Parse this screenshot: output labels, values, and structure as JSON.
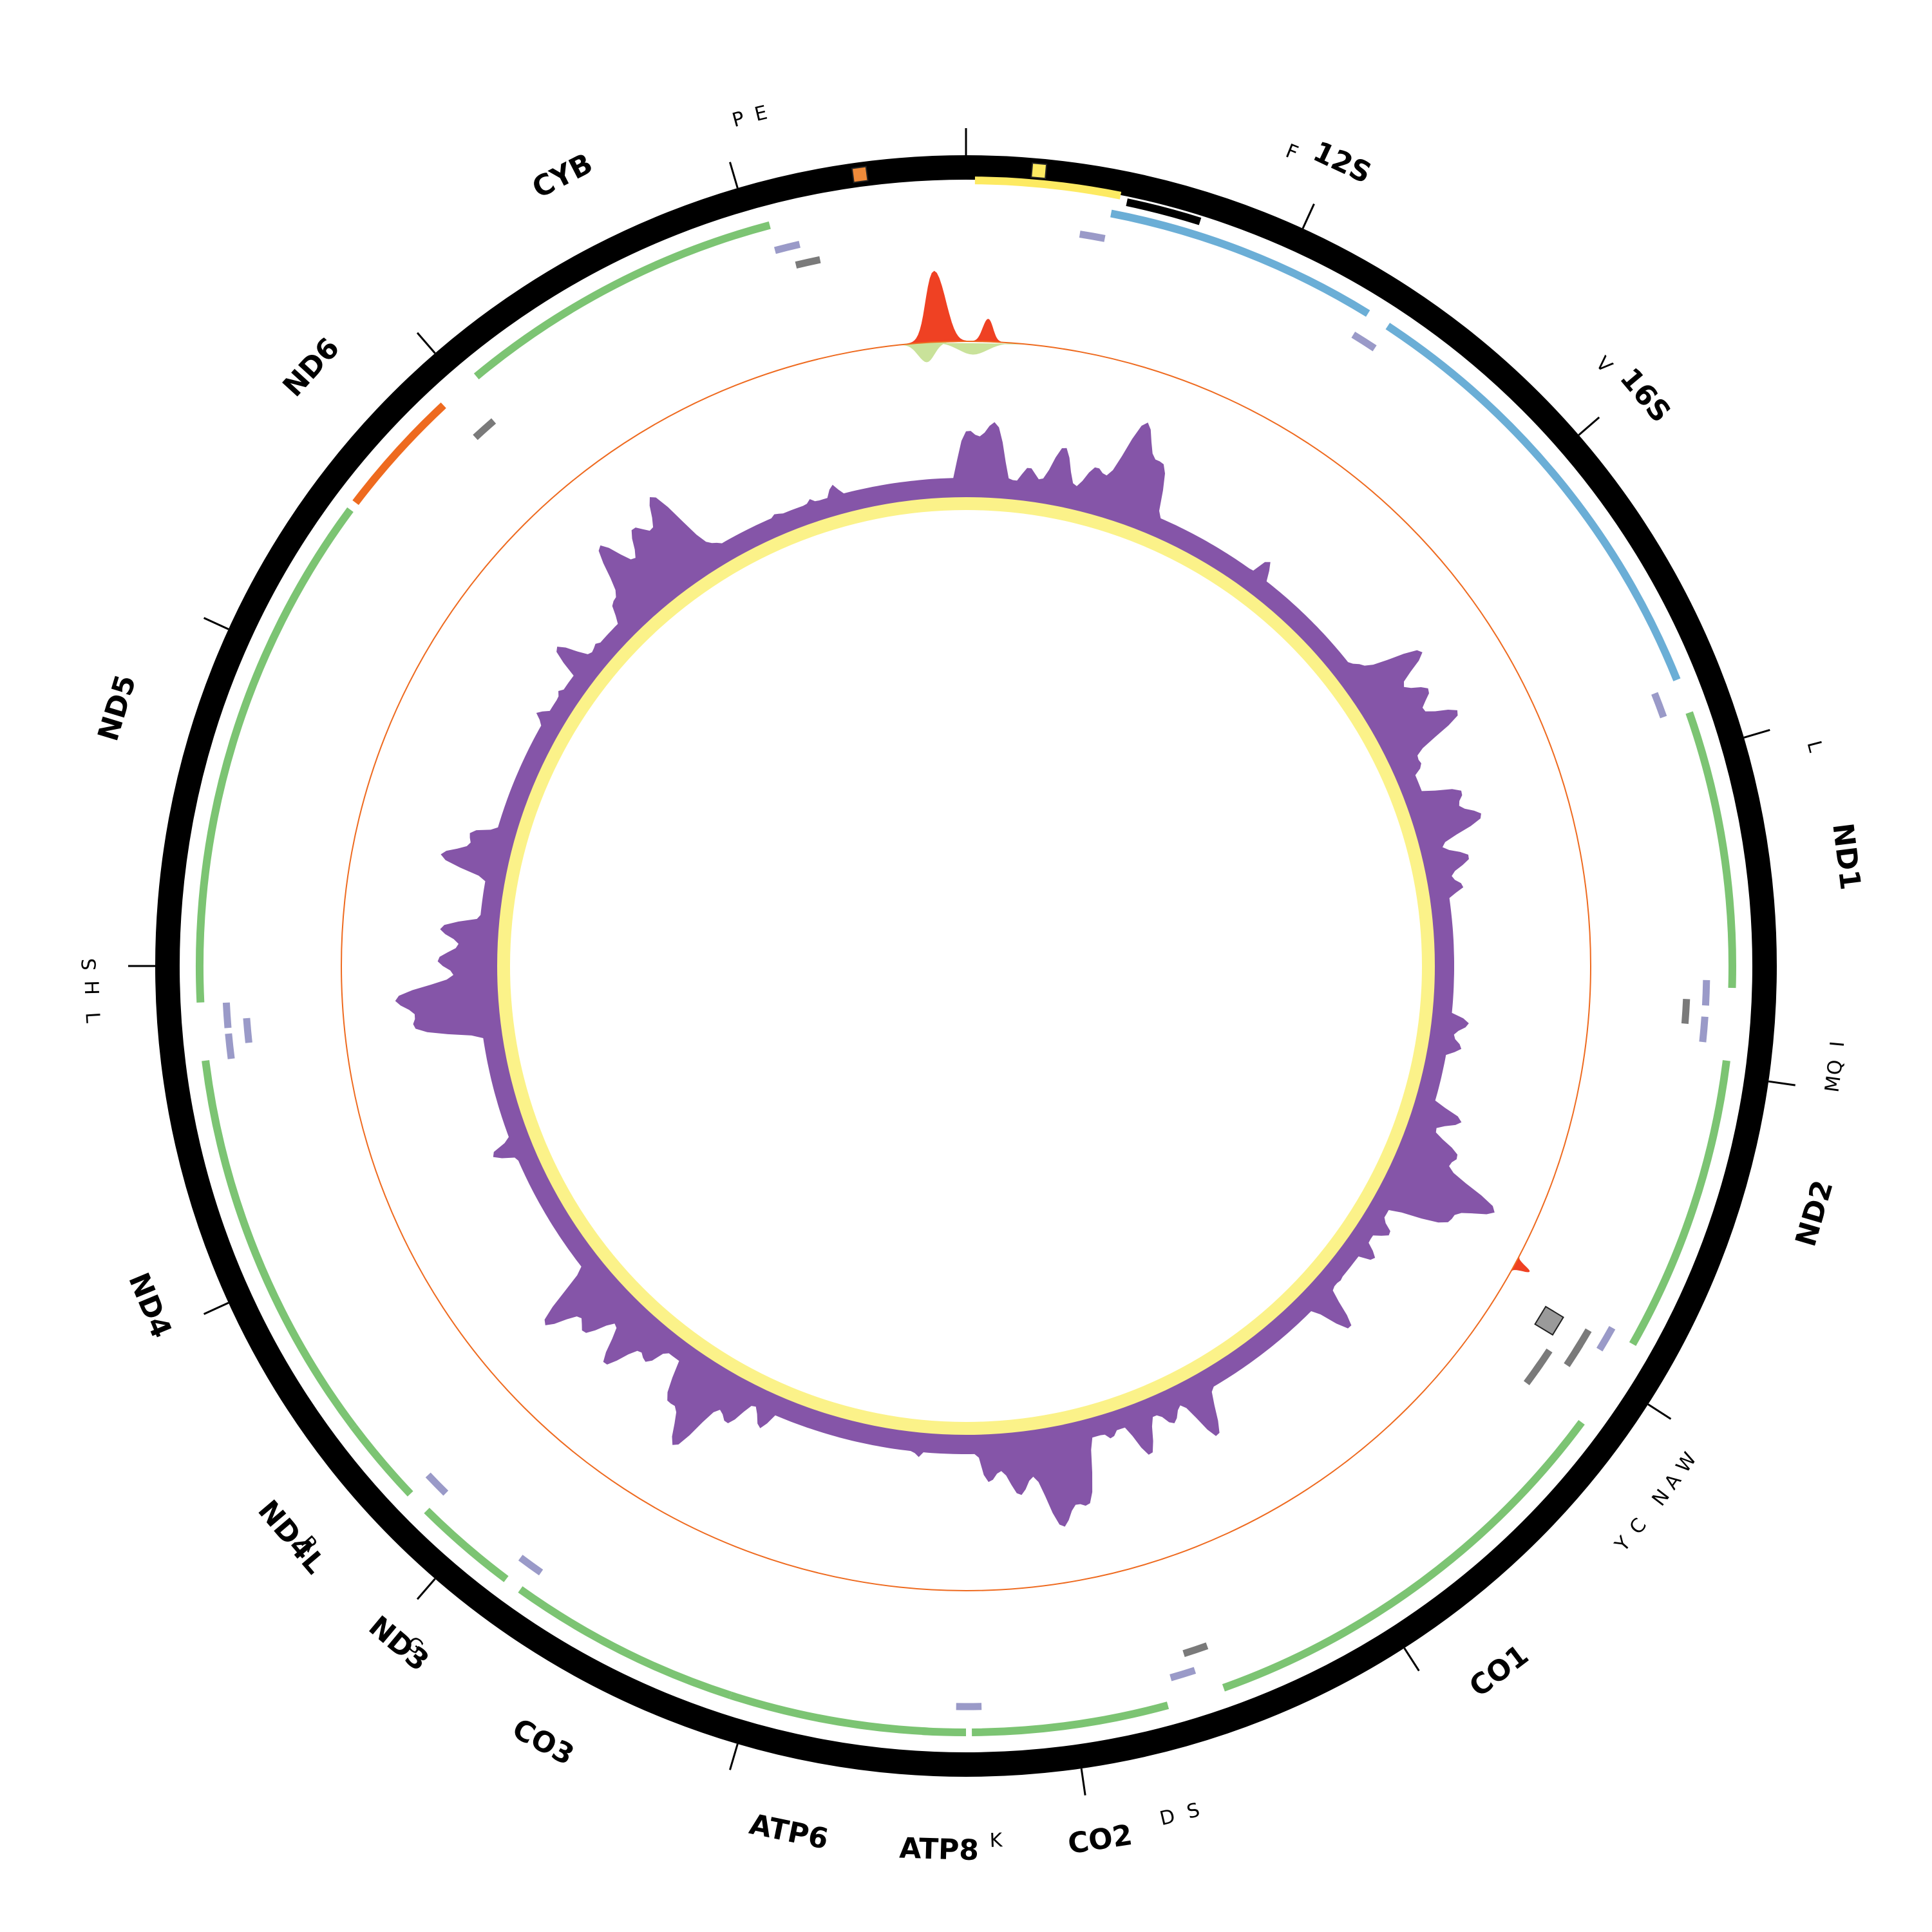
{
  "map": {
    "genome_length": 16500,
    "colors": {
      "backbone": "#000000",
      "protein_coding": "#7cc473",
      "protein_coding_minus": "#ee6a1f",
      "rrna": "#6baed6",
      "trna": "#9a9ac8",
      "trna_dark": "#7a7a7a",
      "control_region": "#fdea62",
      "repeat": "#000000",
      "gc_skew_positive": "#8555a8",
      "gc_skew_negative": "#fbf289",
      "coverage_peak": "#ef4123",
      "coverage_dip": "#c9e29a",
      "reference_circle": "#ee6a1f",
      "origin_marker_fill": "#fdea62",
      "cyb_marker_fill": "#ee8a3a",
      "trna_marker_fill": "#9a9a9a"
    },
    "genes": [
      {
        "label": "12S",
        "start": 500,
        "end": 1450,
        "type": "rRNA",
        "lane": "outer"
      },
      {
        "label": "16S",
        "start": 1530,
        "end": 3120,
        "type": "rRNA",
        "lane": "outer"
      },
      {
        "label": "ND1",
        "start": 3240,
        "end": 4200,
        "type": "protein",
        "lane": "outer"
      },
      {
        "label": "ND2",
        "start": 4450,
        "end": 5480,
        "type": "protein",
        "lane": "outer"
      },
      {
        "label": "CO1",
        "start": 5800,
        "end": 7350,
        "type": "protein",
        "lane": "outer"
      },
      {
        "label": "CO2",
        "start": 7550,
        "end": 8230,
        "type": "protein",
        "lane": "outer"
      },
      {
        "label": "ATP8",
        "start": 8250,
        "end": 8400,
        "type": "protein",
        "lane": "outer"
      },
      {
        "label": "ATP6",
        "start": 8380,
        "end": 9070,
        "type": "protein",
        "lane": "outer"
      },
      {
        "label": "CO3",
        "start": 9070,
        "end": 9880,
        "type": "protein",
        "lane": "outer"
      },
      {
        "label": "ND3",
        "start": 9940,
        "end": 10300,
        "type": "protein",
        "lane": "outer"
      },
      {
        "label": "ND4L",
        "start": 10380,
        "end": 10680,
        "type": "protein",
        "lane": "outer"
      },
      {
        "label": "ND4",
        "start": 10680,
        "end": 12050,
        "type": "protein",
        "lane": "outer"
      },
      {
        "label": "ND5",
        "start": 12250,
        "end": 14050,
        "type": "protein",
        "lane": "outer"
      },
      {
        "label": "ND6",
        "start": 14080,
        "end": 14530,
        "type": "protein_minus",
        "lane": "outer"
      },
      {
        "label": "CYB",
        "start": 14680,
        "end": 15820,
        "type": "protein",
        "lane": "outer"
      }
    ],
    "gene_label_positions": [
      {
        "label": "12S",
        "pos": 1150
      },
      {
        "label": "16S",
        "pos": 2290
      },
      {
        "label": "ND1",
        "pos": 3800
      },
      {
        "label": "ND2",
        "pos": 4870
      },
      {
        "label": "CO1",
        "pos": 6550
      },
      {
        "label": "CO2",
        "pos": 7850
      },
      {
        "label": "ATP8",
        "pos": 8330
      },
      {
        "label": "ATP6",
        "pos": 8780
      },
      {
        "label": "CO3",
        "pos": 9560
      },
      {
        "label": "ND3",
        "pos": 10080
      },
      {
        "label": "ND4L",
        "pos": 10530
      },
      {
        "label": "ND4",
        "pos": 11340
      },
      {
        "label": "ND5",
        "pos": 13150
      },
      {
        "label": "ND6",
        "pos": 14320
      },
      {
        "label": "CYB",
        "pos": 15260
      }
    ],
    "trnas": [
      {
        "label": "F",
        "pos": 450,
        "lane": "mid",
        "tone": "light"
      },
      {
        "label": "V",
        "pos": 1490,
        "lane": "mid",
        "tone": "light"
      },
      {
        "label": "L",
        "pos": 3180,
        "lane": "mid",
        "tone": "light"
      },
      {
        "label": "I",
        "pos": 4220,
        "lane": "mid",
        "tone": "light"
      },
      {
        "label": "Q",
        "pos": 4290,
        "lane": "inner",
        "tone": "dark"
      },
      {
        "label": "M",
        "pos": 4350,
        "lane": "mid",
        "tone": "light"
      },
      {
        "label": "W",
        "pos": 5510,
        "lane": "mid",
        "tone": "light"
      },
      {
        "label": "A",
        "pos": 5560,
        "lane": "inner",
        "tone": "dark"
      },
      {
        "label": "N",
        "pos": 5620,
        "lane": "inner",
        "tone": "dark"
      },
      {
        "label": "C",
        "pos": 5700,
        "lane": "innermost",
        "tone": "dark"
      },
      {
        "label": "Y",
        "pos": 5760,
        "lane": "innermost",
        "tone": "dark"
      },
      {
        "label": "S",
        "pos": 7400,
        "lane": "inner",
        "tone": "dark"
      },
      {
        "label": "D",
        "pos": 7470,
        "lane": "mid",
        "tone": "light"
      },
      {
        "label": "K",
        "pos": 8240,
        "lane": "mid",
        "tone": "light"
      },
      {
        "label": "G",
        "pos": 9900,
        "lane": "mid",
        "tone": "light"
      },
      {
        "label": "R",
        "pos": 10340,
        "lane": "mid",
        "tone": "light"
      },
      {
        "label": "H",
        "pos": 12090,
        "lane": "mid",
        "tone": "light"
      },
      {
        "label": "S",
        "pos": 12140,
        "lane": "inner",
        "tone": "light"
      },
      {
        "label": "L",
        "pos": 12200,
        "lane": "mid",
        "tone": "light"
      },
      {
        "label": "E",
        "pos": 14580,
        "lane": "inner",
        "tone": "dark"
      },
      {
        "label": "T",
        "pos": 15860,
        "lane": "mid",
        "tone": "light"
      },
      {
        "label": "P",
        "pos": 15920,
        "lane": "inner",
        "tone": "dark"
      }
    ],
    "trna_label_positions": [
      {
        "label": "F",
        "pos": 1000
      },
      {
        "label": "V",
        "pos": 2140
      },
      {
        "label": "L",
        "pos": 3460
      },
      {
        "label": "I",
        "pos": 4360
      },
      {
        "label": "Q",
        "pos": 4430
      },
      {
        "label": "M",
        "pos": 4480
      },
      {
        "label": "W",
        "pos": 5710
      },
      {
        "label": "A",
        "pos": 5780
      },
      {
        "label": "N",
        "pos": 5840
      },
      {
        "label": "C",
        "pos": 5950
      },
      {
        "label": "Y",
        "pos": 6020
      },
      {
        "label": "S",
        "pos": 7560
      },
      {
        "label": "D",
        "pos": 7640
      },
      {
        "label": "K",
        "pos": 8160
      },
      {
        "label": "G",
        "pos": 10040
      },
      {
        "label": "R",
        "pos": 10480
      },
      {
        "label": "L",
        "pos": 12220
      },
      {
        "label": "H",
        "pos": 12310
      },
      {
        "label": "S",
        "pos": 12380
      },
      {
        "label": "P",
        "pos": 15810
      },
      {
        "label": "E",
        "pos": 15880
      }
    ],
    "control_region": {
      "start": 0,
      "end": 520
    },
    "repeat_block": {
      "start": 545,
      "end": 800
    },
    "tick_positions": [
      0,
      1125,
      2250,
      3375,
      4500,
      5625,
      6750,
      7875,
      9000,
      10125,
      11250,
      12375,
      13500,
      14625,
      15750
    ],
    "markers": [
      {
        "name": "origin-marker",
        "pos": 240,
        "fill_key": "origin_marker_fill"
      },
      {
        "name": "cyb-marker",
        "pos": 16150,
        "fill_key": "cyb_marker_fill"
      },
      {
        "name": "trna-cluster-marker",
        "pos": 5560,
        "fill_key": "trna_marker_fill"
      }
    ]
  }
}
